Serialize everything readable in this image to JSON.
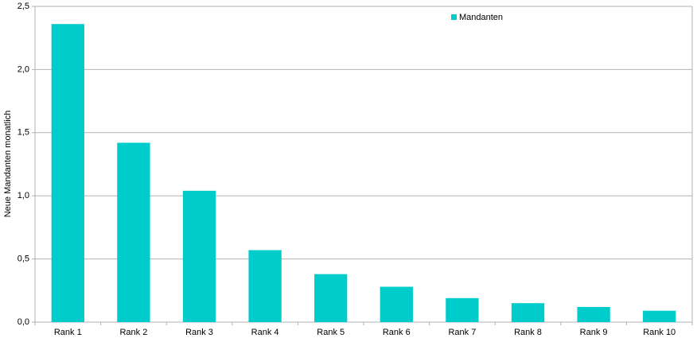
{
  "chart_data": {
    "type": "bar",
    "y_label": "Neue Mandanten monatlich",
    "categories": [
      "Rank 1",
      "Rank 2",
      "Rank 3",
      "Rank 4",
      "Rank 5",
      "Rank 6",
      "Rank 7",
      "Rank 8",
      "Rank 9",
      "Rank 10"
    ],
    "series": [
      {
        "name": "Mandanten",
        "color": "#00cccc",
        "values": [
          2.36,
          1.42,
          1.04,
          0.57,
          0.38,
          0.28,
          0.19,
          0.15,
          0.12,
          0.09
        ]
      }
    ],
    "ylim": [
      0,
      2.5
    ],
    "yticks": [
      {
        "value": 0,
        "label": "0,0"
      },
      {
        "value": 0.5,
        "label": "0,5"
      },
      {
        "value": 1,
        "label": "1,0"
      },
      {
        "value": 1.5,
        "label": "1,5"
      },
      {
        "value": 2,
        "label": "2,0"
      },
      {
        "value": 2.5,
        "label": "2,5"
      }
    ],
    "grid": true,
    "legend": "top"
  }
}
